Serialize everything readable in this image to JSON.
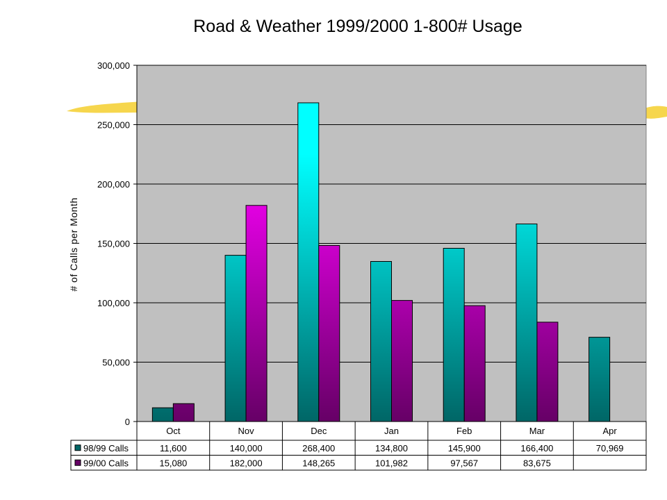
{
  "colors": {
    "plot_background": "#c0c0c0",
    "series_1_top": "#00ffff",
    "series_1_bottom": "#006666",
    "series_2_top": "#ff00ff",
    "series_2_bottom": "#660066",
    "accent_brush": "#f5d23a"
  },
  "chart_data": {
    "type": "bar",
    "title": "Road & Weather 1999/2000 1-800# Usage",
    "xlabel": "",
    "ylabel": "# of Calls per Month",
    "ylim": [
      0,
      300000
    ],
    "yticks": [
      0,
      50000,
      100000,
      150000,
      200000,
      250000,
      300000
    ],
    "ytick_labels": [
      "0",
      "50,000",
      "100,000",
      "150,000",
      "200,000",
      "250,000",
      "300,000"
    ],
    "grid": true,
    "legend": "data-table",
    "categories": [
      "Oct",
      "Nov",
      "Dec",
      "Jan",
      "Feb",
      "Mar",
      "Apr"
    ],
    "series": [
      {
        "name": "98/99 Calls",
        "values": [
          11600,
          140000,
          268400,
          134800,
          145900,
          166400,
          70969
        ],
        "labels": [
          "11,600",
          "140,000",
          "268,400",
          "134,800",
          "145,900",
          "166,400",
          "70,969"
        ]
      },
      {
        "name": "99/00 Calls",
        "values": [
          15080,
          182000,
          148265,
          101982,
          97567,
          83675,
          null
        ],
        "labels": [
          "15,080",
          "182,000",
          "148,265",
          "101,982",
          "97,567",
          "83,675",
          ""
        ]
      }
    ]
  }
}
